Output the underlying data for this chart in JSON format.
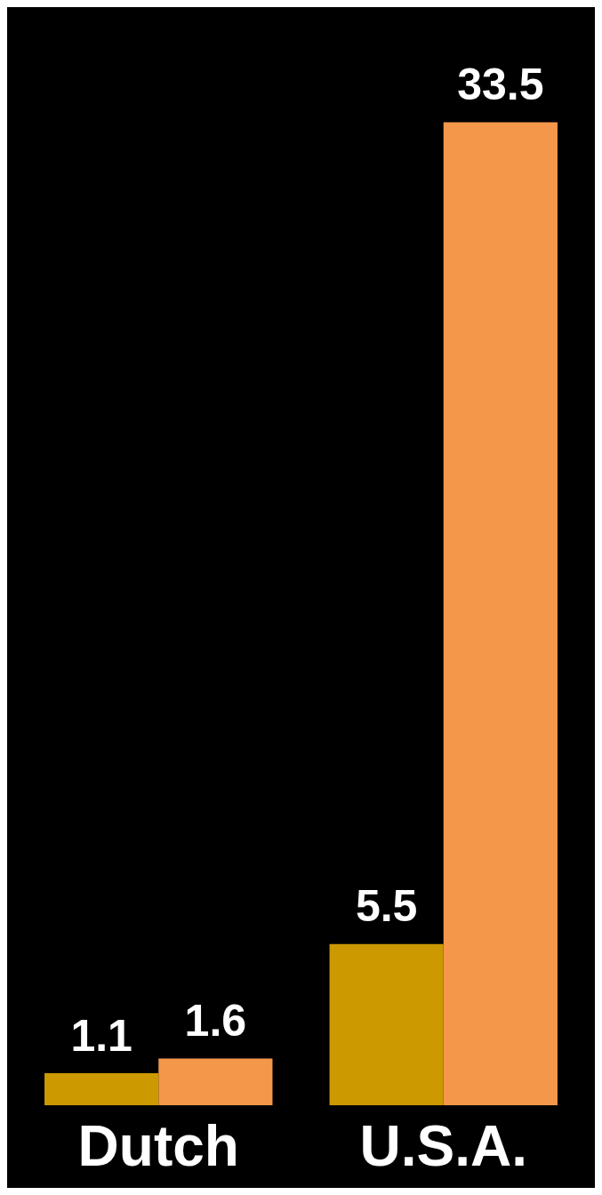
{
  "chart_data": {
    "type": "bar",
    "categories": [
      "Dutch",
      "U.S.A."
    ],
    "series": [
      {
        "color": "#cc9900",
        "values": [
          1.1,
          5.5
        ]
      },
      {
        "color": "#f5974b",
        "values": [
          1.6,
          33.5
        ]
      }
    ],
    "data_labels": true,
    "tick_labels": "x"
  }
}
